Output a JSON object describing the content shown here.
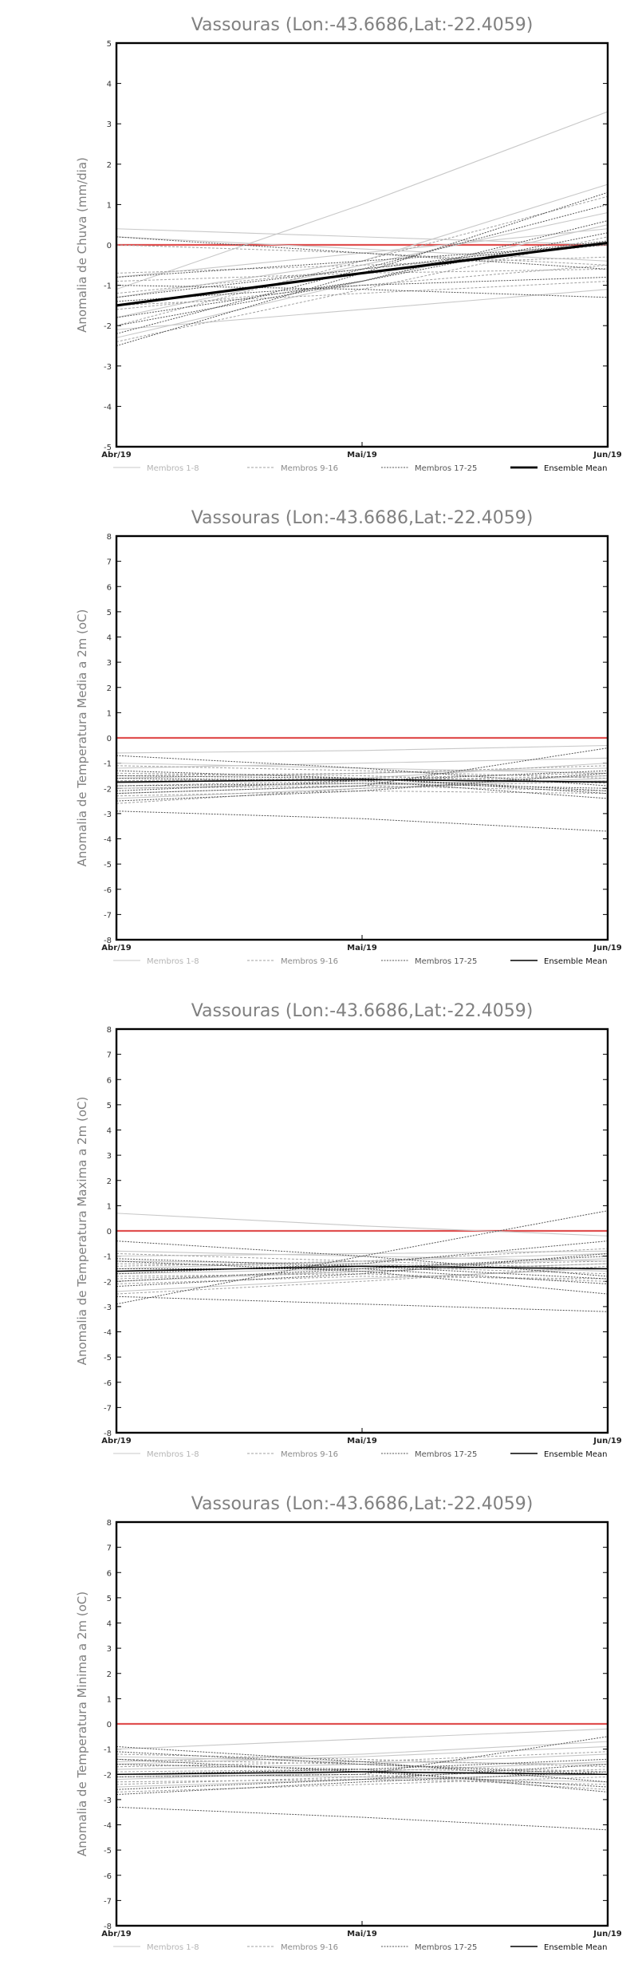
{
  "legend": {
    "m1": "Membros 1-8",
    "m2": "Membros 9-16",
    "m3": "Membros 17-25",
    "mean": "Ensemble Mean"
  },
  "colors": {
    "zero_line": "#e05050",
    "m1": "#c8c8c8",
    "m2": "#a0a0a0",
    "m3": "#555555",
    "mean": "#000000",
    "frame": "#000000",
    "title": "#808080"
  },
  "chart_data": [
    {
      "type": "line",
      "title": "Vassouras (Lon:-43.6686,Lat:-22.4059)",
      "ylabel": "Anomalia de Chuva (mm/dia)",
      "x": [
        "Abr/19",
        "Mai/19",
        "Jun/19"
      ],
      "ylim": [
        -5,
        5
      ],
      "yticks": [
        -5,
        -4,
        -3,
        -2,
        -1,
        0,
        1,
        2,
        3,
        4,
        5
      ],
      "mean_bold": true,
      "series": [
        {
          "group": "m1",
          "values": [
            -1.1,
            1.0,
            3.3
          ]
        },
        {
          "group": "m1",
          "values": [
            0.4,
            0.2,
            0.0
          ]
        },
        {
          "group": "m1",
          "values": [
            -0.8,
            -0.2,
            0.4
          ]
        },
        {
          "group": "m1",
          "values": [
            -1.8,
            -0.5,
            0.8
          ]
        },
        {
          "group": "m1",
          "values": [
            -2.3,
            -0.9,
            0.5
          ]
        },
        {
          "group": "m1",
          "values": [
            -1.3,
            -0.4,
            1.5
          ]
        },
        {
          "group": "m1",
          "values": [
            -2.1,
            -1.6,
            -1.1
          ]
        },
        {
          "group": "m1",
          "values": [
            0.2,
            -0.1,
            -0.4
          ]
        },
        {
          "group": "m2",
          "values": [
            -0.7,
            -0.5,
            -0.3
          ]
        },
        {
          "group": "m2",
          "values": [
            -2.0,
            -0.4,
            1.2
          ]
        },
        {
          "group": "m2",
          "values": [
            0.0,
            -0.2,
            -0.5
          ]
        },
        {
          "group": "m2",
          "values": [
            -1.5,
            -1.2,
            -0.9
          ]
        },
        {
          "group": "m2",
          "values": [
            -2.4,
            -1.1,
            0.2
          ]
        },
        {
          "group": "m2",
          "values": [
            -0.9,
            -0.7,
            -0.6
          ]
        },
        {
          "group": "m2",
          "values": [
            -1.2,
            -0.6,
            0.0
          ]
        },
        {
          "group": "m2",
          "values": [
            -1.6,
            -1.0,
            -0.5
          ]
        },
        {
          "group": "m3",
          "values": [
            -2.2,
            -0.6,
            1.0
          ]
        },
        {
          "group": "m3",
          "values": [
            0.2,
            -0.2,
            -0.6
          ]
        },
        {
          "group": "m3",
          "values": [
            -1.4,
            -1.0,
            -0.8
          ]
        },
        {
          "group": "m3",
          "values": [
            -2.5,
            -0.7,
            1.3
          ]
        },
        {
          "group": "m3",
          "values": [
            -1.0,
            -1.1,
            -1.3
          ]
        },
        {
          "group": "m3",
          "values": [
            -1.8,
            -0.9,
            0.3
          ]
        },
        {
          "group": "m3",
          "values": [
            -0.8,
            -0.4,
            0.0
          ]
        },
        {
          "group": "m3",
          "values": [
            -2.0,
            -0.9,
            0.6
          ]
        },
        {
          "group": "m3",
          "values": [
            -1.3,
            -0.6,
            0.1
          ]
        },
        {
          "group": "mean",
          "values": [
            -1.5,
            -0.7,
            0.05
          ]
        }
      ]
    },
    {
      "type": "line",
      "title": "Vassouras (Lon:-43.6686,Lat:-22.4059)",
      "ylabel": "Anomalia de Temperatura Media a 2m (oC)",
      "x": [
        "Abr/19",
        "Mai/19",
        "Jun/19"
      ],
      "ylim": [
        -8,
        8
      ],
      "yticks": [
        -8,
        -7,
        -6,
        -5,
        -4,
        -3,
        -2,
        -1,
        0,
        1,
        2,
        3,
        4,
        5,
        6,
        7,
        8
      ],
      "mean_bold": false,
      "series": [
        {
          "group": "m1",
          "values": [
            -0.6,
            -0.5,
            -0.3
          ]
        },
        {
          "group": "m1",
          "values": [
            -1.2,
            -1.0,
            -0.8
          ]
        },
        {
          "group": "m1",
          "values": [
            -2.2,
            -1.9,
            -1.5
          ]
        },
        {
          "group": "m1",
          "values": [
            -1.6,
            -1.4,
            -1.2
          ]
        },
        {
          "group": "m1",
          "values": [
            -2.0,
            -1.8,
            -1.7
          ]
        },
        {
          "group": "m1",
          "values": [
            -1.0,
            -1.2,
            -1.4
          ]
        },
        {
          "group": "m1",
          "values": [
            -1.8,
            -1.6,
            -1.0
          ]
        },
        {
          "group": "m1",
          "values": [
            -2.4,
            -2.0,
            -1.6
          ]
        },
        {
          "group": "m2",
          "values": [
            -1.4,
            -1.5,
            -1.8
          ]
        },
        {
          "group": "m2",
          "values": [
            -2.6,
            -2.0,
            -1.7
          ]
        },
        {
          "group": "m2",
          "values": [
            -1.1,
            -1.3,
            -1.6
          ]
        },
        {
          "group": "m2",
          "values": [
            -2.0,
            -1.9,
            -2.1
          ]
        },
        {
          "group": "m2",
          "values": [
            -1.7,
            -1.6,
            -1.4
          ]
        },
        {
          "group": "m2",
          "values": [
            -2.3,
            -2.1,
            -2.2
          ]
        },
        {
          "group": "m2",
          "values": [
            -1.5,
            -1.4,
            -1.1
          ]
        },
        {
          "group": "m2",
          "values": [
            -1.9,
            -1.7,
            -1.5
          ]
        },
        {
          "group": "m3",
          "values": [
            -2.9,
            -3.2,
            -3.7
          ]
        },
        {
          "group": "m3",
          "values": [
            -1.3,
            -1.6,
            -2.1
          ]
        },
        {
          "group": "m3",
          "values": [
            -2.5,
            -2.1,
            -1.4
          ]
        },
        {
          "group": "m3",
          "values": [
            -1.6,
            -1.7,
            -2.4
          ]
        },
        {
          "group": "m3",
          "values": [
            -0.7,
            -1.2,
            -1.9
          ]
        },
        {
          "group": "m3",
          "values": [
            -2.2,
            -1.9,
            -0.4
          ]
        },
        {
          "group": "m3",
          "values": [
            -1.9,
            -1.8,
            -2.0
          ]
        },
        {
          "group": "m3",
          "values": [
            -1.5,
            -1.6,
            -2.2
          ]
        },
        {
          "group": "m3",
          "values": [
            -2.1,
            -1.7,
            -1.3
          ]
        },
        {
          "group": "mean",
          "values": [
            -1.75,
            -1.65,
            -1.75
          ]
        }
      ]
    },
    {
      "type": "line",
      "title": "Vassouras (Lon:-43.6686,Lat:-22.4059)",
      "ylabel": "Anomalia de Temperatura Maxima a 2m (oC)",
      "x": [
        "Abr/19",
        "Mai/19",
        "Jun/19"
      ],
      "ylim": [
        -8,
        8
      ],
      "yticks": [
        -8,
        -7,
        -6,
        -5,
        -4,
        -3,
        -2,
        -1,
        0,
        1,
        2,
        3,
        4,
        5,
        6,
        7,
        8
      ],
      "mean_bold": false,
      "series": [
        {
          "group": "m1",
          "values": [
            0.7,
            0.2,
            -0.2
          ]
        },
        {
          "group": "m1",
          "values": [
            -0.8,
            -1.0,
            -1.2
          ]
        },
        {
          "group": "m1",
          "values": [
            -1.5,
            -1.2,
            -0.9
          ]
        },
        {
          "group": "m1",
          "values": [
            -2.0,
            -1.6,
            -1.3
          ]
        },
        {
          "group": "m1",
          "values": [
            -1.2,
            -1.3,
            -1.6
          ]
        },
        {
          "group": "m1",
          "values": [
            -2.4,
            -1.9,
            -1.5
          ]
        },
        {
          "group": "m1",
          "values": [
            -1.0,
            -0.9,
            -0.8
          ]
        },
        {
          "group": "m1",
          "values": [
            -1.7,
            -1.5,
            -1.1
          ]
        },
        {
          "group": "m2",
          "values": [
            -1.3,
            -1.4,
            -1.7
          ]
        },
        {
          "group": "m2",
          "values": [
            -2.5,
            -2.0,
            -1.4
          ]
        },
        {
          "group": "m2",
          "values": [
            -0.9,
            -1.2,
            -1.5
          ]
        },
        {
          "group": "m2",
          "values": [
            -1.8,
            -1.7,
            -2.0
          ]
        },
        {
          "group": "m2",
          "values": [
            -1.6,
            -1.4,
            -1.2
          ]
        },
        {
          "group": "m2",
          "values": [
            -2.1,
            -1.8,
            -1.9
          ]
        },
        {
          "group": "m2",
          "values": [
            -1.4,
            -1.2,
            -0.7
          ]
        },
        {
          "group": "m2",
          "values": [
            -1.9,
            -1.6,
            -1.3
          ]
        },
        {
          "group": "m3",
          "values": [
            -2.9,
            -1.0,
            0.8
          ]
        },
        {
          "group": "m3",
          "values": [
            -2.6,
            -2.9,
            -3.2
          ]
        },
        {
          "group": "m3",
          "values": [
            -0.4,
            -1.0,
            -1.8
          ]
        },
        {
          "group": "m3",
          "values": [
            -1.7,
            -1.3,
            -0.4
          ]
        },
        {
          "group": "m3",
          "values": [
            -1.2,
            -1.6,
            -2.5
          ]
        },
        {
          "group": "m3",
          "values": [
            -2.2,
            -1.7,
            -0.9
          ]
        },
        {
          "group": "m3",
          "values": [
            -1.5,
            -1.5,
            -2.1
          ]
        },
        {
          "group": "m3",
          "values": [
            -1.1,
            -1.4,
            -1.9
          ]
        },
        {
          "group": "m3",
          "values": [
            -2.0,
            -1.5,
            -1.0
          ]
        },
        {
          "group": "mean",
          "values": [
            -1.6,
            -1.4,
            -1.5
          ]
        }
      ]
    },
    {
      "type": "line",
      "title": "Vassouras (Lon:-43.6686,Lat:-22.4059)",
      "ylabel": "Anomalia de Temperatura Minima a 2m (oC)",
      "x": [
        "Abr/19",
        "Mai/19",
        "Jun/19"
      ],
      "ylim": [
        -8,
        8
      ],
      "yticks": [
        -8,
        -7,
        -6,
        -5,
        -4,
        -3,
        -2,
        -1,
        0,
        1,
        2,
        3,
        4,
        5,
        6,
        7,
        8
      ],
      "mean_bold": false,
      "series": [
        {
          "group": "m1",
          "values": [
            -1.0,
            -0.6,
            -0.2
          ]
        },
        {
          "group": "m1",
          "values": [
            -1.6,
            -1.3,
            -0.9
          ]
        },
        {
          "group": "m1",
          "values": [
            -2.2,
            -1.9,
            -1.5
          ]
        },
        {
          "group": "m1",
          "values": [
            -1.3,
            -1.5,
            -1.6
          ]
        },
        {
          "group": "m1",
          "values": [
            -2.5,
            -2.2,
            -2.0
          ]
        },
        {
          "group": "m1",
          "values": [
            -1.8,
            -1.6,
            -1.2
          ]
        },
        {
          "group": "m1",
          "values": [
            -2.0,
            -2.1,
            -2.3
          ]
        },
        {
          "group": "m1",
          "values": [
            -1.5,
            -1.2,
            -0.7
          ]
        },
        {
          "group": "m2",
          "values": [
            -1.9,
            -1.8,
            -1.9
          ]
        },
        {
          "group": "m2",
          "values": [
            -2.7,
            -2.4,
            -2.1
          ]
        },
        {
          "group": "m2",
          "values": [
            -1.4,
            -1.6,
            -1.9
          ]
        },
        {
          "group": "m2",
          "values": [
            -2.3,
            -2.2,
            -2.4
          ]
        },
        {
          "group": "m2",
          "values": [
            -1.7,
            -1.5,
            -1.1
          ]
        },
        {
          "group": "m2",
          "values": [
            -2.1,
            -2.0,
            -2.6
          ]
        },
        {
          "group": "m2",
          "values": [
            -1.2,
            -1.4,
            -1.7
          ]
        },
        {
          "group": "m2",
          "values": [
            -2.4,
            -2.1,
            -1.8
          ]
        },
        {
          "group": "m3",
          "values": [
            -3.3,
            -3.7,
            -4.2
          ]
        },
        {
          "group": "m3",
          "values": [
            -0.9,
            -1.5,
            -2.3
          ]
        },
        {
          "group": "m3",
          "values": [
            -2.6,
            -2.2,
            -1.6
          ]
        },
        {
          "group": "m3",
          "values": [
            -1.6,
            -1.8,
            -2.7
          ]
        },
        {
          "group": "m3",
          "values": [
            -2.1,
            -2.0,
            -0.5
          ]
        },
        {
          "group": "m3",
          "values": [
            -1.1,
            -1.6,
            -2.0
          ]
        },
        {
          "group": "m3",
          "values": [
            -2.8,
            -2.3,
            -1.9
          ]
        },
        {
          "group": "m3",
          "values": [
            -1.4,
            -1.9,
            -2.5
          ]
        },
        {
          "group": "m3",
          "values": [
            -2.0,
            -1.8,
            -1.4
          ]
        },
        {
          "group": "mean",
          "values": [
            -2.0,
            -1.9,
            -2.0
          ]
        }
      ]
    }
  ]
}
